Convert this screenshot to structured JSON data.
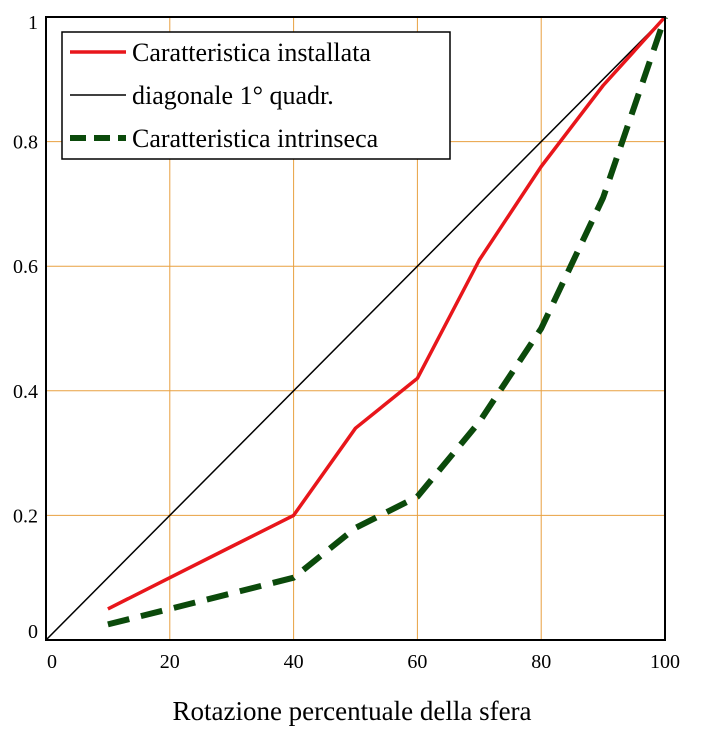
{
  "chart_data": {
    "type": "line",
    "title": "",
    "xlabel": "Rotazione percentuale della sfera",
    "ylabel": "",
    "xlim": [
      0,
      100
    ],
    "ylim": [
      0,
      1
    ],
    "x_ticks": [
      0,
      20,
      40,
      60,
      80,
      100
    ],
    "x_tick_labels": [
      "0",
      "20",
      "40",
      "60",
      "80",
      "100"
    ],
    "y_ticks": [
      0,
      0.2,
      0.4,
      0.6,
      0.8,
      1
    ],
    "y_tick_labels": [
      "0",
      "0.2",
      "0.4",
      "0.6",
      "0.8",
      "1"
    ],
    "grid": true,
    "grid_color": "#e8a040",
    "legend_position": "top-left",
    "series": [
      {
        "name": "Caratteristica installata",
        "color": "#e8161b",
        "style": "solid",
        "x": [
          10,
          20,
          30,
          40,
          50,
          60,
          70,
          80,
          90,
          100
        ],
        "y": [
          0.05,
          0.1,
          0.15,
          0.2,
          0.34,
          0.42,
          0.61,
          0.76,
          0.89,
          1.0
        ]
      },
      {
        "name": "diagonale 1° quadr.",
        "color": "#000000",
        "style": "thin",
        "x": [
          0,
          100
        ],
        "y": [
          0,
          1
        ]
      },
      {
        "name": "Caratteristica intrinseca",
        "color": "#0b4a0b",
        "style": "dashed",
        "x": [
          10,
          20,
          30,
          40,
          50,
          60,
          70,
          80,
          90,
          100
        ],
        "y": [
          0.025,
          0.05,
          0.075,
          0.1,
          0.18,
          0.23,
          0.35,
          0.5,
          0.71,
          1.0
        ]
      }
    ]
  }
}
